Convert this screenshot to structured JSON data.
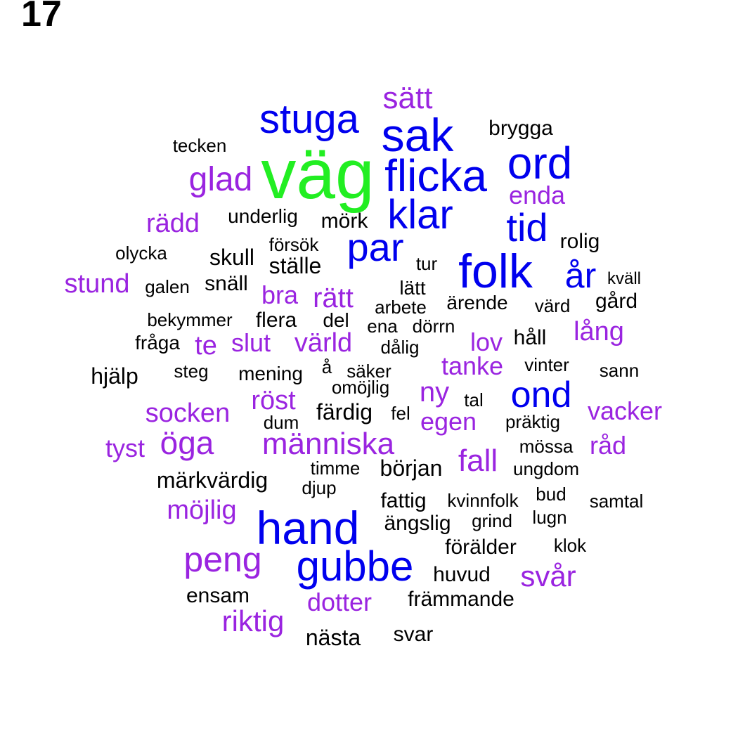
{
  "panel_number": "17",
  "palette": {
    "green": "#22ee22",
    "blue": "#0000ee",
    "purple": "#9a24e0",
    "black": "#000000"
  },
  "words": [
    {
      "text": "väg",
      "color": "green"
    },
    {
      "text": "sak",
      "color": "blue"
    },
    {
      "text": "stuga",
      "color": "blue"
    },
    {
      "text": "flicka",
      "color": "blue"
    },
    {
      "text": "ord",
      "color": "blue"
    },
    {
      "text": "klar",
      "color": "blue"
    },
    {
      "text": "par",
      "color": "blue"
    },
    {
      "text": "tid",
      "color": "blue"
    },
    {
      "text": "folk",
      "color": "blue"
    },
    {
      "text": "år",
      "color": "blue"
    },
    {
      "text": "ond",
      "color": "blue"
    },
    {
      "text": "hand",
      "color": "blue"
    },
    {
      "text": "gubbe",
      "color": "blue"
    },
    {
      "text": "sätt",
      "color": "purple"
    },
    {
      "text": "glad",
      "color": "purple"
    },
    {
      "text": "enda",
      "color": "purple"
    },
    {
      "text": "rädd",
      "color": "purple"
    },
    {
      "text": "stund",
      "color": "purple"
    },
    {
      "text": "bra",
      "color": "purple"
    },
    {
      "text": "rätt",
      "color": "purple"
    },
    {
      "text": "lång",
      "color": "purple"
    },
    {
      "text": "te",
      "color": "purple"
    },
    {
      "text": "slut",
      "color": "purple"
    },
    {
      "text": "värld",
      "color": "purple"
    },
    {
      "text": "lov",
      "color": "purple"
    },
    {
      "text": "tanke",
      "color": "purple"
    },
    {
      "text": "ny",
      "color": "purple"
    },
    {
      "text": "socken",
      "color": "purple"
    },
    {
      "text": "röst",
      "color": "purple"
    },
    {
      "text": "vacker",
      "color": "purple"
    },
    {
      "text": "egen",
      "color": "purple"
    },
    {
      "text": "tyst",
      "color": "purple"
    },
    {
      "text": "öga",
      "color": "purple"
    },
    {
      "text": "människa",
      "color": "purple"
    },
    {
      "text": "råd",
      "color": "purple"
    },
    {
      "text": "fall",
      "color": "purple"
    },
    {
      "text": "möjlig",
      "color": "purple"
    },
    {
      "text": "peng",
      "color": "purple"
    },
    {
      "text": "svår",
      "color": "purple"
    },
    {
      "text": "dotter",
      "color": "purple"
    },
    {
      "text": "riktig",
      "color": "purple"
    },
    {
      "text": "brygga",
      "color": "black"
    },
    {
      "text": "tecken",
      "color": "black"
    },
    {
      "text": "underlig",
      "color": "black"
    },
    {
      "text": "mörk",
      "color": "black"
    },
    {
      "text": "rolig",
      "color": "black"
    },
    {
      "text": "olycka",
      "color": "black"
    },
    {
      "text": "försök",
      "color": "black"
    },
    {
      "text": "skull",
      "color": "black"
    },
    {
      "text": "ställe",
      "color": "black"
    },
    {
      "text": "tur",
      "color": "black"
    },
    {
      "text": "galen",
      "color": "black"
    },
    {
      "text": "snäll",
      "color": "black"
    },
    {
      "text": "lätt",
      "color": "black"
    },
    {
      "text": "kväll",
      "color": "black"
    },
    {
      "text": "gård",
      "color": "black"
    },
    {
      "text": "arbete",
      "color": "black"
    },
    {
      "text": "ärende",
      "color": "black"
    },
    {
      "text": "värd",
      "color": "black"
    },
    {
      "text": "bekymmer",
      "color": "black"
    },
    {
      "text": "flera",
      "color": "black"
    },
    {
      "text": "del",
      "color": "black"
    },
    {
      "text": "ena",
      "color": "black"
    },
    {
      "text": "dörrn",
      "color": "black"
    },
    {
      "text": "fråga",
      "color": "black"
    },
    {
      "text": "dålig",
      "color": "black"
    },
    {
      "text": "håll",
      "color": "black"
    },
    {
      "text": "hjälp",
      "color": "black"
    },
    {
      "text": "steg",
      "color": "black"
    },
    {
      "text": "mening",
      "color": "black"
    },
    {
      "text": "å",
      "color": "black"
    },
    {
      "text": "säker",
      "color": "black"
    },
    {
      "text": "vinter",
      "color": "black"
    },
    {
      "text": "sann",
      "color": "black"
    },
    {
      "text": "omöjlig",
      "color": "black"
    },
    {
      "text": "färdig",
      "color": "black"
    },
    {
      "text": "fel",
      "color": "black"
    },
    {
      "text": "tal",
      "color": "black"
    },
    {
      "text": "dum",
      "color": "black"
    },
    {
      "text": "präktig",
      "color": "black"
    },
    {
      "text": "mössa",
      "color": "black"
    },
    {
      "text": "timme",
      "color": "black"
    },
    {
      "text": "början",
      "color": "black"
    },
    {
      "text": "ungdom",
      "color": "black"
    },
    {
      "text": "märkvärdig",
      "color": "black"
    },
    {
      "text": "djup",
      "color": "black"
    },
    {
      "text": "fattig",
      "color": "black"
    },
    {
      "text": "kvinnfolk",
      "color": "black"
    },
    {
      "text": "bud",
      "color": "black"
    },
    {
      "text": "samtal",
      "color": "black"
    },
    {
      "text": "ängslig",
      "color": "black"
    },
    {
      "text": "grind",
      "color": "black"
    },
    {
      "text": "lugn",
      "color": "black"
    },
    {
      "text": "förälder",
      "color": "black"
    },
    {
      "text": "klok",
      "color": "black"
    },
    {
      "text": "huvud",
      "color": "black"
    },
    {
      "text": "ensam",
      "color": "black"
    },
    {
      "text": "främmande",
      "color": "black"
    },
    {
      "text": "nästa",
      "color": "black"
    },
    {
      "text": "svar",
      "color": "black"
    }
  ]
}
